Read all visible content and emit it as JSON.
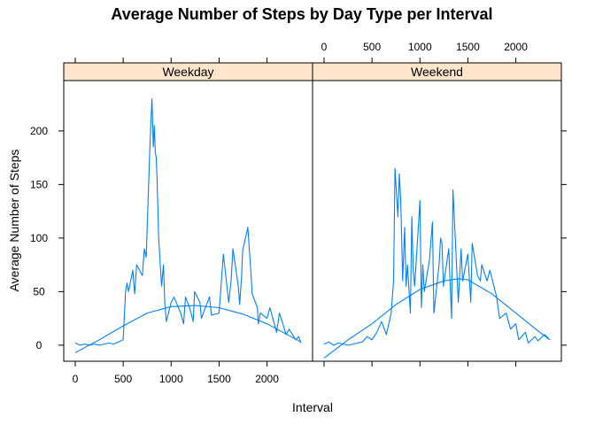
{
  "chart_data": {
    "type": "line",
    "title": "Average Number of Steps by Day Type per Interval",
    "xlabel": "Interval",
    "ylabel": "Average Number of Steps",
    "xlim": [
      -120,
      2475
    ],
    "ylim": [
      -15,
      247
    ],
    "x_ticks": [
      0,
      500,
      1000,
      1500,
      2000
    ],
    "y_ticks": [
      0,
      50,
      100,
      150,
      200
    ],
    "line_color": "#0080ff",
    "strip_color": "#ffe5cc",
    "panels": [
      {
        "name": "Weekday",
        "series": {
          "x": [
            0,
            50,
            100,
            150,
            200,
            250,
            300,
            350,
            400,
            450,
            500,
            525,
            540,
            555,
            600,
            620,
            640,
            700,
            720,
            740,
            780,
            800,
            815,
            825,
            835,
            845,
            855,
            870,
            900,
            920,
            935,
            950,
            1000,
            1030,
            1100,
            1130,
            1150,
            1200,
            1230,
            1245,
            1300,
            1315,
            1400,
            1420,
            1500,
            1515,
            1545,
            1600,
            1625,
            1645,
            1700,
            1715,
            1735,
            1745,
            1800,
            1830,
            1845,
            1900,
            1910,
            1930,
            2000,
            2030,
            2100,
            2130,
            2200,
            2230,
            2300,
            2330,
            2355
          ],
          "y": [
            2,
            0,
            1,
            0,
            1,
            0,
            1,
            2,
            1,
            3,
            5,
            50,
            58,
            50,
            70,
            48,
            75,
            65,
            90,
            82,
            190,
            230,
            185,
            205,
            180,
            175,
            150,
            100,
            55,
            75,
            38,
            22,
            40,
            45,
            30,
            20,
            45,
            33,
            22,
            50,
            40,
            25,
            45,
            28,
            30,
            48,
            85,
            40,
            60,
            90,
            55,
            38,
            65,
            88,
            110,
            70,
            48,
            35,
            20,
            30,
            25,
            35,
            12,
            30,
            10,
            15,
            5,
            8,
            2
          ]
        },
        "trend": {
          "x": [
            0,
            250,
            500,
            750,
            1000,
            1250,
            1500,
            1750,
            2000,
            2250,
            2355
          ],
          "y": [
            -7,
            5,
            18,
            30,
            36,
            37,
            35,
            29,
            20,
            8,
            3
          ]
        }
      },
      {
        "name": "Weekend",
        "series": {
          "x": [
            0,
            50,
            100,
            150,
            200,
            250,
            300,
            350,
            400,
            450,
            500,
            550,
            600,
            650,
            700,
            725,
            740,
            770,
            785,
            800,
            820,
            840,
            855,
            870,
            900,
            915,
            930,
            945,
            1000,
            1015,
            1030,
            1045,
            1100,
            1130,
            1145,
            1200,
            1215,
            1230,
            1245,
            1300,
            1330,
            1345,
            1400,
            1430,
            1445,
            1500,
            1530,
            1545,
            1600,
            1630,
            1645,
            1700,
            1730,
            1800,
            1830,
            1900,
            1945,
            2000,
            2030,
            2100,
            2130,
            2200,
            2230,
            2300,
            2355
          ],
          "y": [
            1,
            3,
            0,
            2,
            1,
            0,
            1,
            2,
            3,
            8,
            5,
            12,
            22,
            10,
            30,
            60,
            165,
            120,
            160,
            135,
            60,
            110,
            55,
            75,
            30,
            120,
            70,
            55,
            135,
            35,
            75,
            50,
            80,
            115,
            30,
            75,
            100,
            95,
            55,
            90,
            25,
            145,
            40,
            90,
            60,
            85,
            40,
            95,
            65,
            60,
            75,
            60,
            70,
            45,
            25,
            30,
            15,
            20,
            5,
            12,
            2,
            8,
            4,
            10,
            5
          ]
        },
        "trend": {
          "x": [
            0,
            250,
            500,
            750,
            1000,
            1250,
            1400,
            1500,
            1750,
            2000,
            2250,
            2355
          ],
          "y": [
            -12,
            5,
            20,
            38,
            52,
            60,
            62,
            61,
            48,
            30,
            12,
            5
          ]
        }
      }
    ]
  }
}
